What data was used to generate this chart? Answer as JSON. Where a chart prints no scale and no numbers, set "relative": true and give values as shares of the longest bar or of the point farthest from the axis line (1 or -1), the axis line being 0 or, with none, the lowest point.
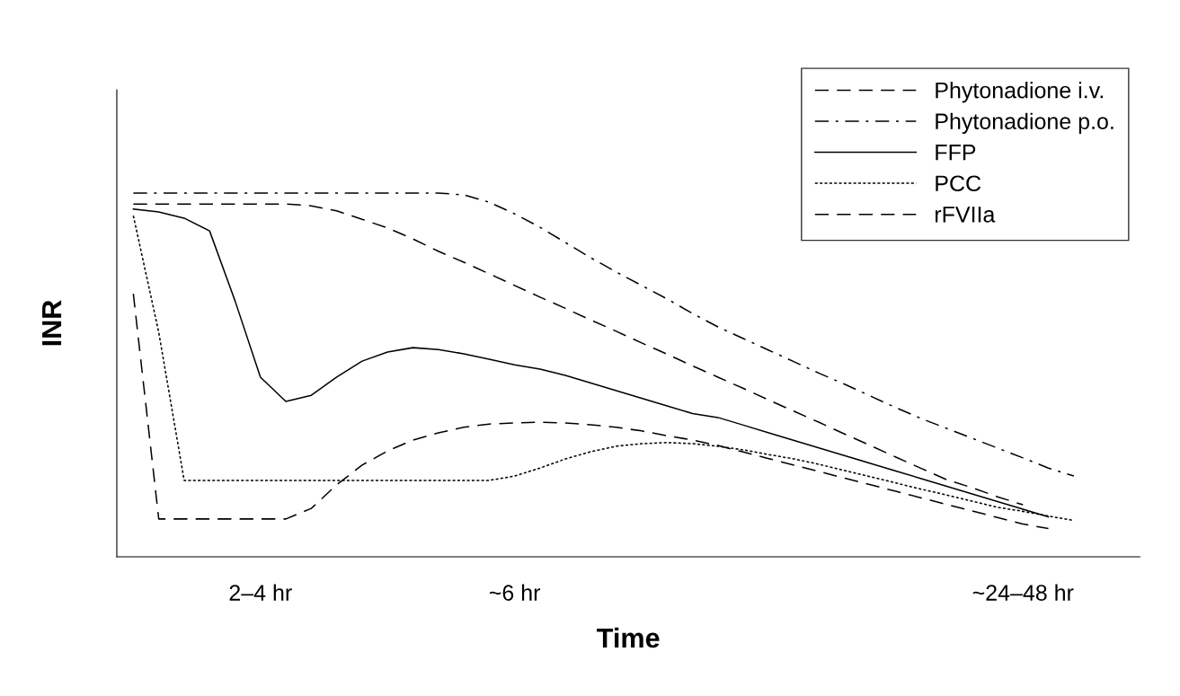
{
  "chart_data": {
    "type": "line",
    "relative": true,
    "xlabel": "Time",
    "ylabel": "INR",
    "categories": [
      null,
      null,
      null,
      null,
      null,
      "2–4 hr",
      null,
      null,
      null,
      null,
      null,
      null,
      null,
      null,
      null,
      "~6 hr",
      null,
      null,
      null,
      null,
      null,
      null,
      null,
      null,
      null,
      null,
      null,
      null,
      null,
      null,
      null,
      null,
      null,
      null,
      null,
      "~24–48 hr",
      null,
      null
    ],
    "legend": "top right",
    "grid": false,
    "marker": "none",
    "series": [
      {
        "name": "Phytonadione i.v.",
        "color": "#000000",
        "line_style": "dashed",
        "values": [
          0.97,
          0.97,
          0.97,
          0.97,
          0.97,
          0.97,
          0.97,
          0.965,
          0.951,
          0.928,
          0.904,
          0.874,
          0.84,
          0.81,
          0.778,
          0.746,
          0.714,
          0.683,
          0.651,
          0.62,
          0.588,
          0.557,
          0.525,
          0.494,
          0.463,
          0.431,
          0.4,
          0.369,
          0.337,
          0.306,
          0.274,
          0.243,
          0.212,
          0.19,
          0.165,
          0.143,
          null,
          null
        ]
      },
      {
        "name": "Phytonadione p.o.",
        "color": "#000000",
        "line_style": "dashdot",
        "values": [
          1.0,
          1.0,
          1.0,
          1.0,
          1.0,
          1.0,
          1.0,
          1.0,
          1.0,
          1.0,
          1.0,
          1.0,
          1.0,
          0.995,
          0.975,
          0.943,
          0.906,
          0.864,
          0.822,
          0.783,
          0.746,
          0.709,
          0.669,
          0.632,
          0.6,
          0.568,
          0.536,
          0.504,
          0.474,
          0.442,
          0.41,
          0.38,
          0.353,
          0.326,
          0.299,
          0.272,
          0.244,
          0.222
        ]
      },
      {
        "name": "FFP",
        "color": "#000000",
        "line_style": "solid",
        "values": [
          0.956,
          0.948,
          0.931,
          0.896,
          0.704,
          0.494,
          0.427,
          0.444,
          0.494,
          0.538,
          0.563,
          0.575,
          0.57,
          0.558,
          0.543,
          0.528,
          0.516,
          0.499,
          0.478,
          0.457,
          0.436,
          0.415,
          0.394,
          0.383,
          0.362,
          0.341,
          0.32,
          0.299,
          0.278,
          0.257,
          0.236,
          0.215,
          0.194,
          0.173,
          0.152,
          0.131,
          0.11,
          null
        ]
      },
      {
        "name": "PCC",
        "color": "#000000",
        "line_style": "dotted",
        "values": [
          0.938,
          0.617,
          0.21,
          0.21,
          0.21,
          0.21,
          0.21,
          0.21,
          0.21,
          0.21,
          0.21,
          0.21,
          0.21,
          0.21,
          0.21,
          0.222,
          0.244,
          0.269,
          0.289,
          0.304,
          0.311,
          0.314,
          0.311,
          0.304,
          0.294,
          0.281,
          0.269,
          0.254,
          0.237,
          0.22,
          0.203,
          0.186,
          0.17,
          0.153,
          0.136,
          0.125,
          0.112,
          0.1
        ]
      },
      {
        "name": "rFVIIa",
        "color": "#000000",
        "line_style": "dashed",
        "values": [
          0.723,
          0.104,
          0.104,
          0.104,
          0.104,
          0.104,
          0.104,
          0.133,
          0.198,
          0.252,
          0.291,
          0.321,
          0.341,
          0.356,
          0.365,
          0.368,
          0.37,
          0.368,
          0.363,
          0.356,
          0.346,
          0.333,
          0.321,
          0.306,
          0.288,
          0.27,
          0.252,
          0.234,
          0.216,
          0.198,
          0.18,
          0.162,
          0.144,
          0.126,
          0.108,
          0.09,
          0.078,
          null
        ]
      }
    ]
  }
}
